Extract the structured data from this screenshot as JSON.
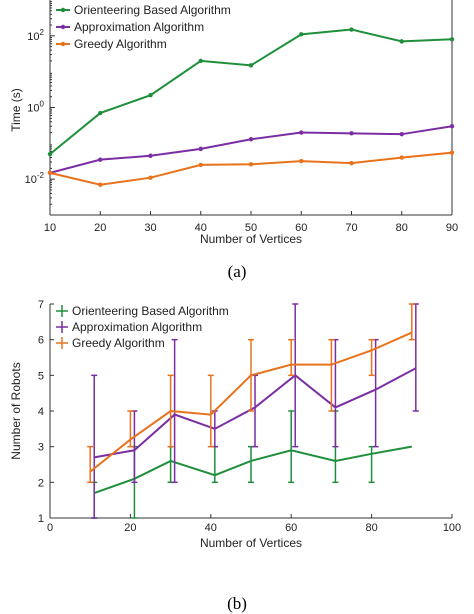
{
  "captions": {
    "a": "(a)",
    "b": "(b)"
  },
  "colors": {
    "orienteering": "#1f8f3c",
    "approximation": "#7b2ea3",
    "greedy": "#e8731c"
  },
  "chart_data": [
    {
      "type": "line",
      "xlabel": "Number of Vertices",
      "ylabel": "Time (s)",
      "x": [
        10,
        20,
        30,
        40,
        50,
        60,
        70,
        80,
        90
      ],
      "xticks": [
        10,
        20,
        30,
        40,
        50,
        60,
        70,
        80,
        90
      ],
      "xlim": [
        10,
        90
      ],
      "yscale": "log",
      "ylim": [
        0.001,
        1000
      ],
      "yticks": [
        {
          "value": 0.01,
          "base": "10",
          "exp": "-2"
        },
        {
          "value": 1,
          "base": "10",
          "exp": "0"
        },
        {
          "value": 100,
          "base": "10",
          "exp": "2"
        }
      ],
      "legend_position": "top-left",
      "series": [
        {
          "name": "Orienteering Based Algorithm",
          "color": "#1f8f3c",
          "values": [
            0.05,
            0.7,
            2.2,
            20,
            15,
            110,
            150,
            70,
            80
          ]
        },
        {
          "name": "Approximation Algorithm",
          "color": "#7b2ea3",
          "values": [
            0.015,
            0.035,
            0.045,
            0.07,
            0.13,
            0.2,
            0.19,
            0.18,
            0.3
          ]
        },
        {
          "name": "Greedy Algorithm",
          "color": "#e8731c",
          "values": [
            0.015,
            0.007,
            0.011,
            0.025,
            0.026,
            0.032,
            0.028,
            0.04,
            0.055
          ]
        }
      ]
    },
    {
      "type": "line",
      "error_bars": true,
      "xlabel": "Number of Vertices",
      "ylabel": "Number of Robots",
      "xlim": [
        0,
        100
      ],
      "ylim": [
        1,
        7
      ],
      "xticks": [
        0,
        20,
        40,
        60,
        80,
        100
      ],
      "yticks": [
        1,
        2,
        3,
        4,
        5,
        6,
        7
      ],
      "legend_position": "top-left",
      "series": [
        {
          "name": "Orienteering Based Algorithm",
          "color": "#1f8f3c",
          "x": [
            11,
            21,
            30,
            41,
            50,
            60,
            71,
            80,
            90
          ],
          "values": [
            1.7,
            2.1,
            2.6,
            2.2,
            2.6,
            2.9,
            2.6,
            2.8,
            3.0
          ],
          "err_low": [
            1,
            1,
            2,
            2,
            2,
            2,
            2,
            2,
            null
          ],
          "err_high": [
            2,
            3,
            3,
            3,
            3,
            4,
            4,
            3,
            null
          ]
        },
        {
          "name": "Approximation Algorithm",
          "color": "#7b2ea3",
          "x": [
            11,
            21,
            31,
            41,
            51,
            61,
            71,
            81,
            91
          ],
          "values": [
            2.7,
            2.9,
            3.9,
            3.5,
            4.1,
            5.0,
            4.1,
            4.6,
            5.2
          ],
          "err_low": [
            1,
            2,
            2,
            3,
            3,
            3,
            3,
            3,
            4
          ],
          "err_high": [
            5,
            4,
            6,
            4,
            5,
            7,
            6,
            6,
            7
          ]
        },
        {
          "name": "Greedy Algorithm",
          "color": "#e8731c",
          "x": [
            10,
            20,
            30,
            40,
            50,
            60,
            70,
            80,
            90
          ],
          "values": [
            2.3,
            3.2,
            4.0,
            3.9,
            5.0,
            5.3,
            5.3,
            5.7,
            6.2
          ],
          "err_low": [
            2,
            3,
            3,
            3,
            4,
            5,
            4,
            5,
            6
          ],
          "err_high": [
            3,
            4,
            5,
            5,
            6,
            6,
            6,
            6,
            7
          ]
        }
      ]
    }
  ]
}
